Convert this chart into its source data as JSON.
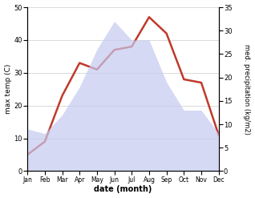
{
  "months": [
    "Jan",
    "Feb",
    "Mar",
    "Apr",
    "May",
    "Jun",
    "Jul",
    "Aug",
    "Sep",
    "Oct",
    "Nov",
    "Dec"
  ],
  "temperature": [
    5,
    9,
    23,
    33,
    31,
    37,
    38,
    47,
    42,
    28,
    27,
    11
  ],
  "precipitation": [
    9,
    8,
    12,
    18,
    26,
    32,
    28,
    28,
    19,
    13,
    13,
    8
  ],
  "temp_color": "#c0392b",
  "precip_color": "#c5caf0",
  "title": "",
  "xlabel": "date (month)",
  "ylabel_left": "max temp (C)",
  "ylabel_right": "med. precipitation (kg/m2)",
  "ylim_left": [
    0,
    50
  ],
  "ylim_right": [
    0,
    35
  ],
  "yticks_left": [
    0,
    10,
    20,
    30,
    40,
    50
  ],
  "yticks_right": [
    0,
    5,
    10,
    15,
    20,
    25,
    30,
    35
  ],
  "bg_color": "#ffffff",
  "grid_color": "#cccccc"
}
